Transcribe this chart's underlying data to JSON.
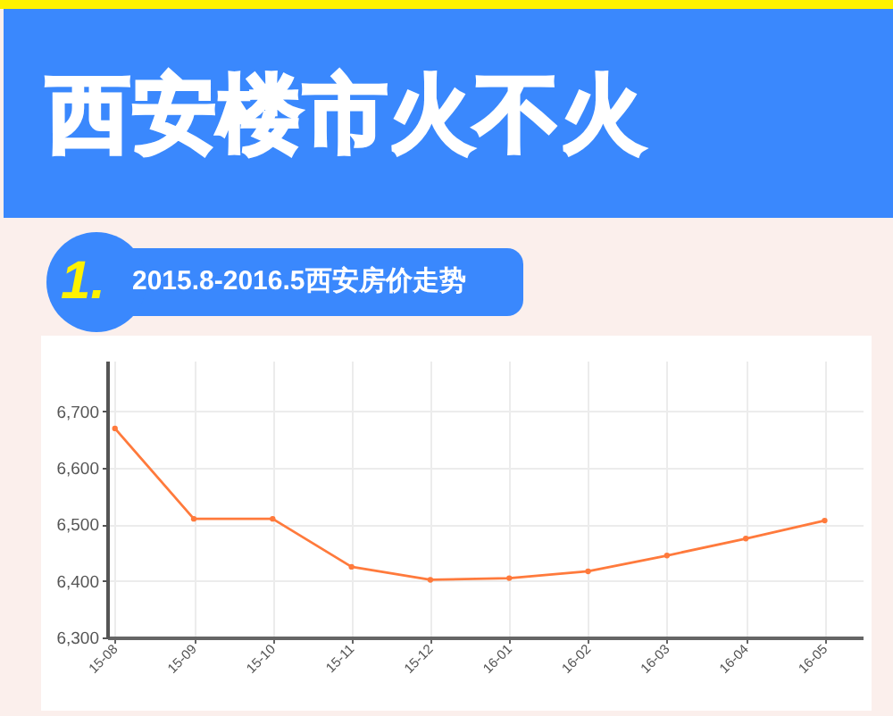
{
  "chart_data": {
    "type": "line",
    "title": "西安楼市火不火",
    "subtitle": "2015.8-2016.5西安房价走势",
    "annotations": [
      "1."
    ],
    "categories": [
      "15-08",
      "15-09",
      "15-10",
      "15-11",
      "15-12",
      "16-01",
      "16-02",
      "16-03",
      "16-04",
      "16-05"
    ],
    "series": [
      {
        "color": "#ff7a3c",
        "values": [
          6670,
          6510,
          6510,
          6425,
          6402,
          6405,
          6417,
          6445,
          6475,
          6507
        ]
      }
    ],
    "ylim": [
      6300,
      6790
    ],
    "yticks": [
      {
        "value": 6300,
        "label": "6,300"
      },
      {
        "value": 6400,
        "label": "6,400"
      },
      {
        "value": 6500,
        "label": "6,500"
      },
      {
        "value": 6600,
        "label": "6,600"
      },
      {
        "value": 6700,
        "label": "6,700"
      }
    ],
    "grid": true,
    "marker": "circle"
  }
}
